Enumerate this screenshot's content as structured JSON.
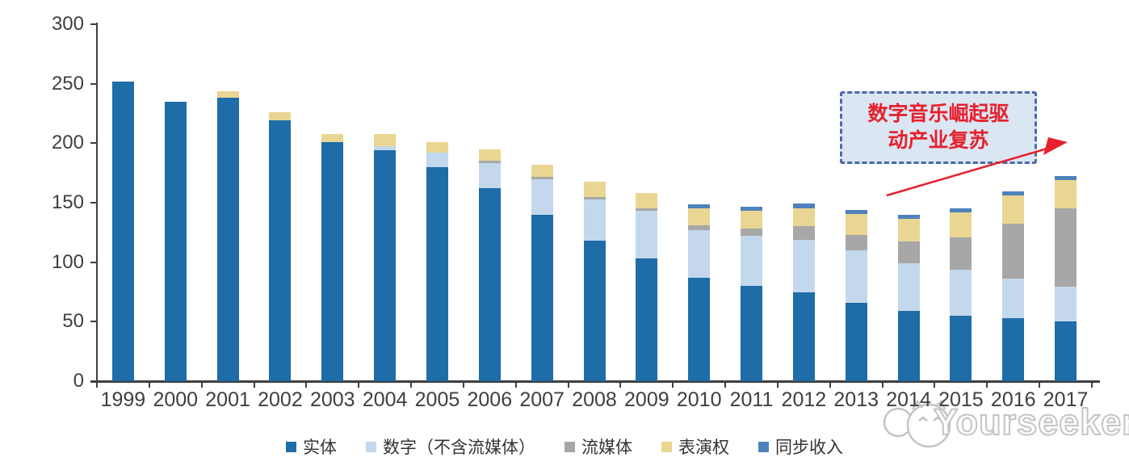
{
  "chart_data": {
    "type": "bar",
    "stacked": true,
    "title": "",
    "categories": [
      "1999",
      "2000",
      "2001",
      "2002",
      "2003",
      "2004",
      "2005",
      "2006",
      "2007",
      "2008",
      "2009",
      "2010",
      "2011",
      "2012",
      "2013",
      "2014",
      "2015",
      "2016",
      "2017"
    ],
    "series": [
      {
        "name": "实体",
        "color": "#1e6ca8",
        "values": [
          252,
          235,
          238,
          219,
          201,
          194,
          180,
          162,
          140,
          118,
          103,
          87,
          80,
          75,
          66,
          59,
          55,
          53,
          50
        ]
      },
      {
        "name": "数字（不含流媒体）",
        "color": "#c3d8ec",
        "values": [
          0,
          0,
          0,
          0,
          0,
          3.5,
          12,
          21.5,
          30,
          35,
          40,
          40,
          42,
          44,
          44,
          40,
          39,
          33,
          29.5
        ]
      },
      {
        "name": "流媒体",
        "color": "#a7a7a7",
        "values": [
          0,
          0,
          0,
          0,
          0,
          0,
          0,
          1.5,
          1.5,
          1.5,
          2,
          4,
          6.5,
          11,
          13,
          18.5,
          27,
          46.5,
          65.5
        ]
      },
      {
        "name": "表演权",
        "color": "#e9d692",
        "values": [
          0,
          0,
          5.5,
          7,
          7,
          10.5,
          9,
          10,
          10.5,
          13.5,
          13.5,
          14.5,
          14.5,
          15,
          17.5,
          19,
          21,
          23.5,
          24
        ]
      },
      {
        "name": "同步收入",
        "color": "#4e82bb",
        "values": [
          0,
          0,
          0,
          0,
          0,
          0,
          0,
          0,
          0,
          0,
          0,
          3,
          3.5,
          4,
          3.5,
          3.5,
          3.5,
          3.5,
          3.5
        ]
      }
    ],
    "ylim": [
      0,
      300
    ],
    "yticks": [
      0,
      50,
      100,
      150,
      200,
      250,
      300
    ],
    "xlabel": "",
    "ylabel": "",
    "grid": false,
    "legend_position": "bottom"
  },
  "annotation": {
    "line1": "数字音乐崛起驱",
    "line2": "动产业复苏",
    "text_color": "#e6202c",
    "box_fill": "#dbe6f3",
    "border_color": "#4a6aa5",
    "arrow_color": "#e6202c"
  },
  "watermark": {
    "text": "Yourseeker"
  },
  "axis": {
    "color": "#3f3f3f"
  }
}
